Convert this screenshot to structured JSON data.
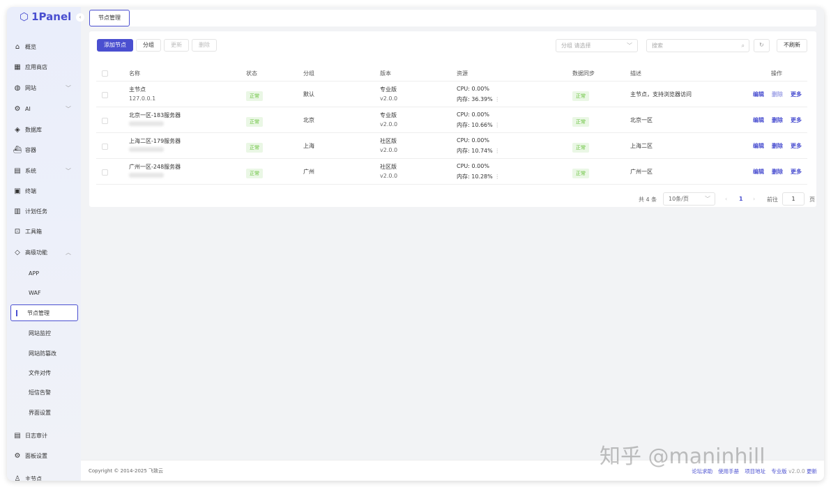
{
  "app": {
    "logo": "1Panel",
    "collapse_icon": "chevron-left"
  },
  "sidebar": {
    "items": [
      {
        "label": "概览",
        "icon": "home"
      },
      {
        "label": "应用商店",
        "icon": "grid"
      },
      {
        "label": "网站",
        "icon": "globe",
        "chevron": "﹀"
      },
      {
        "label": "AI",
        "icon": "robot",
        "chevron": "﹀"
      },
      {
        "label": "数据库",
        "icon": "layers"
      },
      {
        "label": "容器",
        "icon": "container"
      },
      {
        "label": "系统",
        "icon": "server",
        "chevron": "﹀"
      },
      {
        "label": "终端",
        "icon": "terminal"
      },
      {
        "label": "计划任务",
        "icon": "calendar"
      },
      {
        "label": "工具箱",
        "icon": "toolbox"
      },
      {
        "label": "高级功能",
        "icon": "diamond",
        "chevron": "︿"
      }
    ],
    "subitems": [
      "APP",
      "WAF",
      "节点管理",
      "网站监控",
      "网站防篡改",
      "文件对传",
      "短信告警",
      "界面设置"
    ],
    "bottom": [
      {
        "label": "日志审计",
        "icon": "log"
      },
      {
        "label": "面板设置",
        "icon": "gear"
      },
      {
        "label": "主节点",
        "icon": "user"
      }
    ]
  },
  "tabs": {
    "active": "节点管理"
  },
  "toolbar": {
    "add": "添加节点",
    "group": "分组",
    "update": "更新",
    "delete": "删除",
    "group_select": "分组",
    "group_placeholder": "请选择",
    "search_placeholder": "搜索",
    "no_refresh": "不刷新"
  },
  "table": {
    "headers": [
      "名称",
      "状态",
      "分组",
      "版本",
      "资源",
      "数据同步",
      "描述",
      "操作"
    ],
    "rows": [
      {
        "name": "主节点",
        "ip": "127.0.0.1",
        "status": "正常",
        "group": "默认",
        "edition": "专业版",
        "version": "v2.0.0",
        "cpu": "CPU: 0.00%",
        "mem": "内存: 36.39%",
        "sync": "正常",
        "desc": "主节点，支持浏览器访问"
      },
      {
        "name": "北京一区-183服务器",
        "ip": "",
        "status": "正常",
        "group": "北京",
        "edition": "专业版",
        "version": "v2.0.0",
        "cpu": "CPU: 0.00%",
        "mem": "内存: 10.66%",
        "sync": "正常",
        "desc": "北京一区"
      },
      {
        "name": "上海二区-179服务器",
        "ip": "",
        "status": "正常",
        "group": "上海",
        "edition": "社区版",
        "version": "v2.0.0",
        "cpu": "CPU: 0.00%",
        "mem": "内存: 10.74%",
        "sync": "正常",
        "desc": "上海二区"
      },
      {
        "name": "广州一区-248服务器",
        "ip": "",
        "status": "正常",
        "group": "广州",
        "edition": "社区版",
        "version": "v2.0.0",
        "cpu": "CPU: 0.00%",
        "mem": "内存: 10.28%",
        "sync": "正常",
        "desc": "广州一区"
      }
    ],
    "ops": {
      "edit": "编辑",
      "delete": "删除",
      "more": "更多"
    }
  },
  "pagination": {
    "total": "共 4 条",
    "page_size": "10条/页",
    "current": "1",
    "goto": "前往",
    "goto_value": "1",
    "page_suffix": "页"
  },
  "footer": {
    "copyright": "Copyright © 2014-2025 飞致云",
    "links": [
      "论坛求助",
      "使用手册",
      "项目地址",
      "专业版"
    ],
    "version": "v2.0.0",
    "update": "更新"
  },
  "watermark": "知乎 @maninhill"
}
